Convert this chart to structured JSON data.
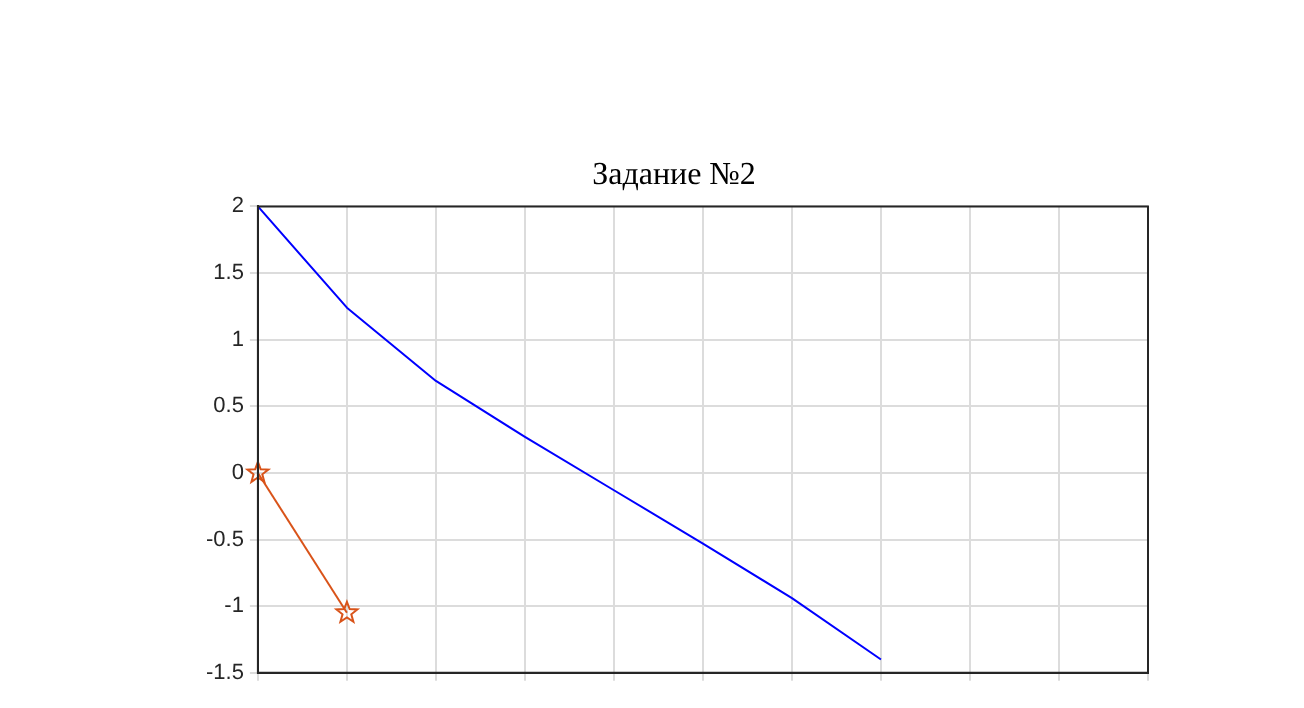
{
  "chart_data": {
    "type": "line",
    "title": "Задание №2",
    "categories": [
      null,
      null,
      null,
      null,
      null,
      null,
      null,
      null,
      null,
      null,
      null
    ],
    "series": [
      {
        "color": "#0000ff",
        "marker": "none",
        "values": [
          2,
          1.24,
          0.69,
          0.27,
          -0.13,
          -0.53,
          -0.94,
          -1.4,
          null,
          null,
          null
        ]
      },
      {
        "color": "#d95319",
        "marker": "star",
        "values": [
          0,
          -1.05,
          null,
          null,
          null,
          null,
          null,
          null,
          null,
          null,
          null
        ]
      }
    ],
    "ylim": [
      -1.5,
      2
    ],
    "yticks": [
      -1.5,
      -1,
      -0.5,
      0,
      0.5,
      1,
      1.5,
      2
    ],
    "grid": true,
    "legend": false,
    "tick_labels": "y"
  }
}
